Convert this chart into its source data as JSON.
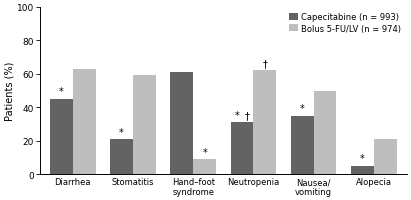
{
  "categories": [
    "Diarrhea",
    "Stomatitis",
    "Hand–foot\nsyndrome",
    "Neutropenia",
    "Nausea/\nvomiting",
    "Alopecia"
  ],
  "capecitabine": [
    45,
    21,
    61,
    31,
    35,
    5
  ],
  "bolus_5fu": [
    63,
    59,
    9,
    62,
    50,
    21
  ],
  "cap_color": "#636363",
  "fu_color": "#bebebe",
  "ylabel": "Patients (%)",
  "ylim": [
    0,
    100
  ],
  "yticks": [
    0,
    20,
    40,
    60,
    80,
    100
  ],
  "legend_cap": "Capecitabine (n = 993)",
  "legend_fu": "Bolus 5-FU/LV (n = 974)",
  "annotations": [
    {
      "cat": 0,
      "bar": "cap",
      "symbol": "*",
      "xoff": 0.0,
      "yoff": 1.5
    },
    {
      "cat": 1,
      "bar": "cap",
      "symbol": "*",
      "xoff": 0.0,
      "yoff": 1.5
    },
    {
      "cat": 2,
      "bar": "fu",
      "symbol": "*",
      "xoff": 0.0,
      "yoff": 1.5
    },
    {
      "cat": 3,
      "bar": "cap",
      "symbol": "*",
      "xoff": -0.08,
      "yoff": 1.5
    },
    {
      "cat": 3,
      "bar": "cap",
      "symbol": "†",
      "xoff": 0.08,
      "yoff": 1.5
    },
    {
      "cat": 3,
      "bar": "fu",
      "symbol": "†",
      "xoff": 0.0,
      "yoff": 1.5
    },
    {
      "cat": 4,
      "bar": "cap",
      "symbol": "*",
      "xoff": 0.0,
      "yoff": 1.5
    },
    {
      "cat": 5,
      "bar": "cap",
      "symbol": "*",
      "xoff": 0.0,
      "yoff": 1.5
    }
  ],
  "bar_width": 0.38,
  "figsize": [
    4.11,
    2.01
  ],
  "dpi": 100
}
